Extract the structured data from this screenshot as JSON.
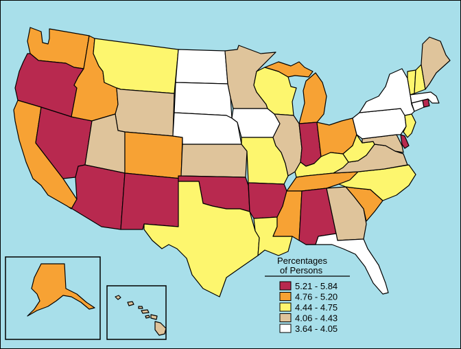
{
  "colors": {
    "water": "#a8dfea",
    "tier1": "#b8294f",
    "tier2": "#f7a234",
    "tier3": "#fdf66e",
    "tier4": "#dfc49b",
    "tier5": "#ffffff"
  },
  "legend": {
    "title_line1": "Percentages",
    "title_line2": "of Persons",
    "items": [
      {
        "label": "5.21 - 5.84",
        "tier": "tier1"
      },
      {
        "label": "4.76 - 5.20",
        "tier": "tier2"
      },
      {
        "label": "4.44 - 4.75",
        "tier": "tier3"
      },
      {
        "label": "4.06 - 4.43",
        "tier": "tier4"
      },
      {
        "label": "3.64 - 4.05",
        "tier": "tier5"
      }
    ]
  },
  "states": {
    "WA": "tier2",
    "OR": "tier1",
    "CA": "tier2",
    "NV": "tier1",
    "ID": "tier2",
    "MT": "tier3",
    "WY": "tier4",
    "UT": "tier4",
    "AZ": "tier1",
    "CO": "tier2",
    "NM": "tier1",
    "ND": "tier5",
    "SD": "tier5",
    "NE": "tier5",
    "KS": "tier4",
    "OK": "tier1",
    "TX": "tier3",
    "MN": "tier4",
    "IA": "tier5",
    "MO": "tier3",
    "AR": "tier1",
    "LA": "tier3",
    "WI": "tier3",
    "IL": "tier4",
    "MI": "tier2",
    "IN": "tier1",
    "OH": "tier2",
    "KY": "tier3",
    "TN": "tier2",
    "MS": "tier2",
    "AL": "tier1",
    "GA": "tier4",
    "FL": "tier5",
    "SC": "tier2",
    "NC": "tier3",
    "VA": "tier4",
    "WV": "tier3",
    "PA": "tier5",
    "NY": "tier5",
    "NJ": "tier3",
    "DE": "tier1",
    "MD": "tier4",
    "CT": "tier5",
    "RI": "tier1",
    "MA": "tier5",
    "VT": "tier3",
    "NH": "tier3",
    "ME": "tier4",
    "AK": "tier2",
    "HI": "tier4"
  }
}
